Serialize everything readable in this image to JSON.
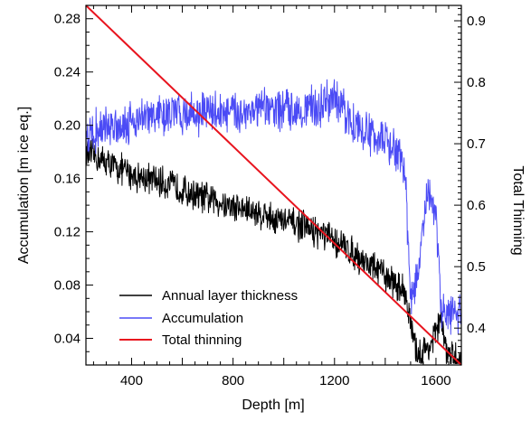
{
  "chart_data": {
    "type": "line",
    "xlabel": "Depth [m]",
    "ylabel": "Accumulation [m ice eq.]",
    "y2label": "Total Thinning",
    "xlim": [
      220,
      1700
    ],
    "ylim": [
      0.02,
      0.29
    ],
    "y2lim": [
      0.34,
      0.925
    ],
    "xticks": [
      400,
      800,
      1200,
      1600
    ],
    "xtick_labels": [
      "400",
      "800",
      "1200",
      "1600"
    ],
    "yticks": [
      0.04,
      0.08,
      0.12,
      0.16,
      0.2,
      0.24,
      0.28
    ],
    "ytick_labels": [
      "0.04",
      "0.08",
      "0.12",
      "0.16",
      "0.20",
      "0.24",
      "0.28"
    ],
    "y2ticks": [
      0.4,
      0.5,
      0.6,
      0.7,
      0.8,
      0.9
    ],
    "y2tick_labels": [
      "0.4",
      "0.5",
      "0.6",
      "0.7",
      "0.8",
      "0.9"
    ],
    "grid": false,
    "legend_position": "bottom-left",
    "series": [
      {
        "name": "Annual layer thickness",
        "color": "#000000",
        "axis": "left",
        "x": [
          220,
          260,
          300,
          340,
          380,
          420,
          460,
          500,
          540,
          580,
          620,
          660,
          700,
          740,
          780,
          820,
          860,
          900,
          940,
          980,
          1020,
          1060,
          1100,
          1140,
          1180,
          1220,
          1260,
          1300,
          1340,
          1380,
          1420,
          1460,
          1480,
          1500,
          1520,
          1540,
          1560,
          1580,
          1600,
          1620,
          1640,
          1660,
          1680,
          1700
        ],
        "y": [
          0.178,
          0.176,
          0.172,
          0.168,
          0.165,
          0.162,
          0.16,
          0.158,
          0.156,
          0.153,
          0.15,
          0.147,
          0.145,
          0.143,
          0.14,
          0.138,
          0.136,
          0.134,
          0.132,
          0.129,
          0.127,
          0.125,
          0.122,
          0.119,
          0.115,
          0.111,
          0.106,
          0.1,
          0.095,
          0.09,
          0.084,
          0.078,
          0.075,
          0.05,
          0.03,
          0.028,
          0.032,
          0.035,
          0.045,
          0.055,
          0.03,
          0.025,
          0.024,
          0.023
        ],
        "noise": 0.012
      },
      {
        "name": "Accumulation",
        "color": "#4b4bf5",
        "axis": "left",
        "x": [
          220,
          260,
          300,
          340,
          380,
          420,
          460,
          500,
          540,
          580,
          620,
          660,
          700,
          740,
          780,
          820,
          860,
          900,
          940,
          980,
          1020,
          1060,
          1100,
          1140,
          1180,
          1220,
          1260,
          1300,
          1340,
          1380,
          1420,
          1460,
          1480,
          1500,
          1520,
          1540,
          1560,
          1580,
          1600,
          1620,
          1640,
          1660,
          1680,
          1700
        ],
        "y": [
          0.192,
          0.196,
          0.198,
          0.2,
          0.202,
          0.205,
          0.206,
          0.207,
          0.208,
          0.209,
          0.209,
          0.209,
          0.21,
          0.21,
          0.209,
          0.21,
          0.211,
          0.211,
          0.212,
          0.212,
          0.212,
          0.212,
          0.213,
          0.214,
          0.22,
          0.215,
          0.205,
          0.197,
          0.193,
          0.19,
          0.185,
          0.175,
          0.16,
          0.07,
          0.08,
          0.105,
          0.14,
          0.145,
          0.135,
          0.06,
          0.058,
          0.058,
          0.057,
          0.058
        ],
        "noise": 0.016
      },
      {
        "name": "Total thinning",
        "color": "#e8141e",
        "axis": "right",
        "x": [
          220,
          1700
        ],
        "y": [
          0.925,
          0.34
        ]
      }
    ]
  }
}
